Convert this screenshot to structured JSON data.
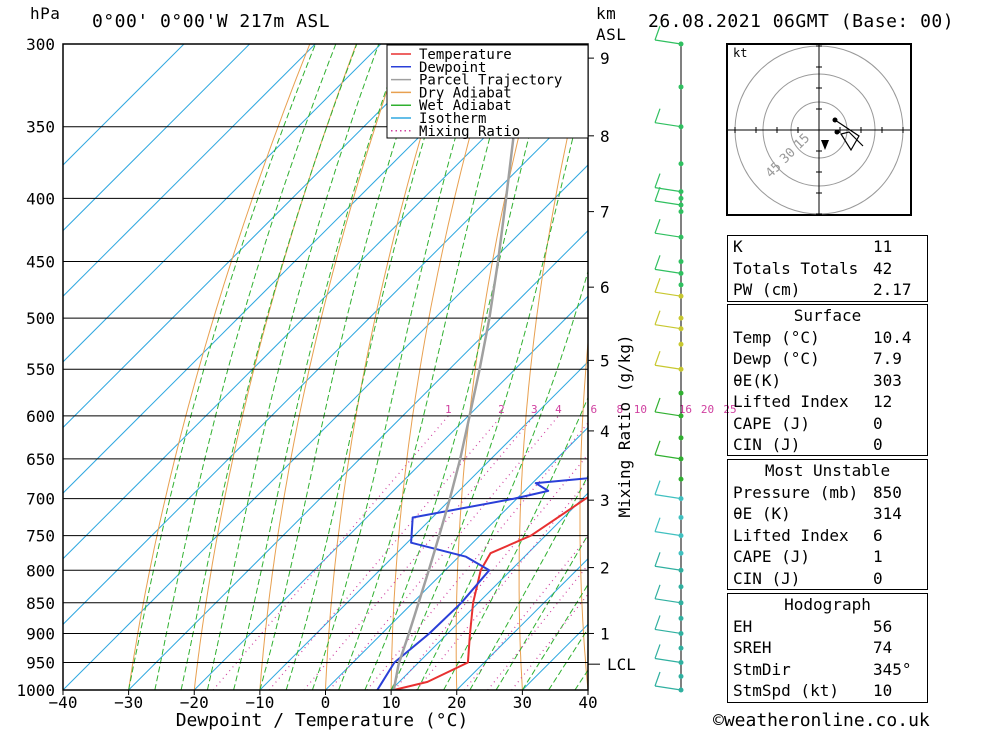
{
  "header": {
    "unit_label": "hPa",
    "location": "0°00' 0°00'W 217m ASL",
    "datetime": "26.08.2021 06GMT (Base: 00)",
    "km_label": "km",
    "asl_label": "ASL"
  },
  "chart_data": {
    "type": "line",
    "subtype": "skew-T log-p diagram",
    "xlabel": "Dewpoint / Temperature (°C)",
    "ylabel": "hPa",
    "right_axis_label": "Mixing Ratio (g/kg)",
    "x_ticks": [
      -40,
      -30,
      -20,
      -10,
      0,
      10,
      20,
      30,
      40
    ],
    "xlim": [
      -40,
      40
    ],
    "pressure_ticks": [
      300,
      350,
      400,
      450,
      500,
      550,
      600,
      650,
      700,
      750,
      800,
      850,
      900,
      950,
      1000
    ],
    "ylim": [
      1000,
      300
    ],
    "y_scale": "log",
    "km_ticks": [
      {
        "label": "1",
        "p": 900
      },
      {
        "label": "2",
        "p": 796
      },
      {
        "label": "3",
        "p": 702
      },
      {
        "label": "4",
        "p": 617
      },
      {
        "label": "5",
        "p": 541
      },
      {
        "label": "6",
        "p": 472
      },
      {
        "label": "7",
        "p": 410
      },
      {
        "label": "8",
        "p": 356
      },
      {
        "label": "9",
        "p": 308
      }
    ],
    "lcl": {
      "label": "LCL",
      "p": 953
    },
    "mixing_ratio_labels": [
      "1",
      "2",
      "3",
      "4",
      "6",
      "8",
      "10",
      "16",
      "20",
      "25"
    ],
    "legend": {
      "placement": "top-middle",
      "entries": [
        {
          "name": "Temperature",
          "color": "#e83030",
          "style": "solid"
        },
        {
          "name": "Dewpoint",
          "color": "#2a3fd8",
          "style": "solid"
        },
        {
          "name": "Parcel Trajectory",
          "color": "#a0a0a0",
          "style": "solid"
        },
        {
          "name": "Dry Adiabat",
          "color": "#e8a050",
          "style": "solid"
        },
        {
          "name": "Wet Adiabat",
          "color": "#30b030",
          "style": "solid"
        },
        {
          "name": "Isotherm",
          "color": "#30a8e0",
          "style": "solid"
        },
        {
          "name": "Mixing Ratio",
          "color": "#d040a0",
          "style": "dotted"
        }
      ]
    },
    "series": [
      {
        "name": "Temperature",
        "color": "#e83030",
        "points": [
          [
            1000,
            10.4
          ],
          [
            985,
            14.3
          ],
          [
            950,
            17.5
          ],
          [
            900,
            13.4
          ],
          [
            850,
            9.2
          ],
          [
            800,
            5.4
          ],
          [
            775,
            4.3
          ],
          [
            750,
            7.8
          ],
          [
            700,
            10.5
          ],
          [
            650,
            15.0
          ],
          [
            600,
            16.7
          ],
          [
            550,
            16.6
          ],
          [
            500,
            19.7
          ],
          [
            450,
            20.5
          ],
          [
            400,
            21.3
          ],
          [
            380,
            21.8
          ],
          [
            350,
            23.8
          ],
          [
            320,
            25.8
          ],
          [
            300,
            28.0
          ]
        ]
      },
      {
        "name": "Dewpoint",
        "color": "#2a3fd8",
        "points": [
          [
            1000,
            7.9
          ],
          [
            950,
            6.3
          ],
          [
            900,
            7.2
          ],
          [
            850,
            7.4
          ],
          [
            800,
            6.7
          ],
          [
            780,
            1.1
          ],
          [
            760,
            -9.4
          ],
          [
            725,
            -13.0
          ],
          [
            700,
            -0.4
          ],
          [
            690,
            3.6
          ],
          [
            680,
            0.5
          ],
          [
            670,
            12.4
          ],
          [
            650,
            11.9
          ],
          [
            600,
            11.1
          ],
          [
            560,
            9.4
          ],
          [
            550,
            9.6
          ],
          [
            500,
            11.2
          ],
          [
            470,
            22.2
          ],
          [
            450,
            20.7
          ],
          [
            425,
            19.0
          ],
          [
            410,
            22.3
          ],
          [
            400,
            21.0
          ],
          [
            390,
            19.7
          ],
          [
            380,
            9.7
          ],
          [
            370,
            25.1
          ],
          [
            360,
            12.3
          ],
          [
            350,
            18.7
          ],
          [
            340,
            20.7
          ],
          [
            320,
            31.8
          ],
          [
            310,
            26.9
          ],
          [
            300,
            28.5
          ]
        ]
      },
      {
        "name": "Parcel Trajectory",
        "color": "#a0a0a0",
        "points": [
          [
            1000,
            10.4
          ],
          [
            953,
            7.2
          ],
          [
            900,
            4.1
          ],
          [
            850,
            0.9
          ],
          [
            800,
            -2.5
          ],
          [
            750,
            -6.2
          ],
          [
            700,
            -10.2
          ],
          [
            650,
            -14.7
          ],
          [
            600,
            -19.8
          ],
          [
            550,
            -25.4
          ],
          [
            500,
            -31.7
          ],
          [
            450,
            -39.0
          ],
          [
            400,
            -47.4
          ],
          [
            350,
            -57.0
          ],
          [
            300,
            -68.0
          ]
        ]
      }
    ],
    "wind_profile_label": "wind barbs (right column)",
    "hodograph": {
      "units_label": "kt",
      "ring_labels": [
        "15",
        "30",
        "45"
      ]
    }
  },
  "indices_top": [
    {
      "label": "K",
      "value": "11"
    },
    {
      "label": "Totals Totals",
      "value": "42"
    },
    {
      "label": "PW (cm)",
      "value": "2.17"
    }
  ],
  "surface": {
    "title": "Surface",
    "rows": [
      {
        "label": "Temp (°C)",
        "value": "10.4"
      },
      {
        "label": "Dewp (°C)",
        "value": "7.9"
      },
      {
        "label": "θE(K)",
        "value": "303"
      },
      {
        "label": "Lifted Index",
        "value": "12"
      },
      {
        "label": "CAPE (J)",
        "value": "0"
      },
      {
        "label": "CIN (J)",
        "value": "0"
      }
    ]
  },
  "most_unstable": {
    "title": "Most Unstable",
    "rows": [
      {
        "label": "Pressure (mb)",
        "value": "850"
      },
      {
        "label": "θE (K)",
        "value": "314"
      },
      {
        "label": "Lifted Index",
        "value": "6"
      },
      {
        "label": "CAPE (J)",
        "value": "1"
      },
      {
        "label": "CIN (J)",
        "value": "0"
      }
    ]
  },
  "hodograph_box": {
    "title": "Hodograph",
    "rows": [
      {
        "label": "EH",
        "value": "56"
      },
      {
        "label": "SREH",
        "value": "74"
      },
      {
        "label": "StmDir",
        "value": "345°"
      },
      {
        "label": "StmSpd (kt)",
        "value": "10"
      }
    ]
  },
  "credit": "©weatheronline.co.uk"
}
